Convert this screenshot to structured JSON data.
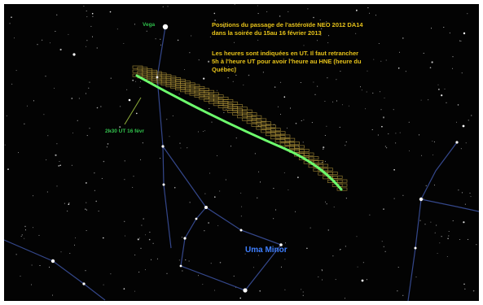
{
  "overlay": {
    "title_lines": [
      "Positions du passage de l'astéroïde NEO 2012 DA14",
      "dans la soirée du 15au 16 février 2013"
    ],
    "note_lines": [
      "Les heures sont indiquées en UT. Il faut retrancher",
      "5h à l'heure UT pour avoir l'heure au HNE (heure du",
      "Québec)"
    ],
    "star_name": "Vega",
    "timestamp": "2h30 UT 16 févr",
    "constellation": "Uma Minor"
  },
  "colors": {
    "sky": "#030303",
    "annotation": "#e6c21a",
    "track": "#6dff6d",
    "track_labels": "#a48b36",
    "constellation_lines": "#3a4f9a",
    "label_green": "#2ebd4a",
    "constellation_label": "#3f7fff"
  }
}
